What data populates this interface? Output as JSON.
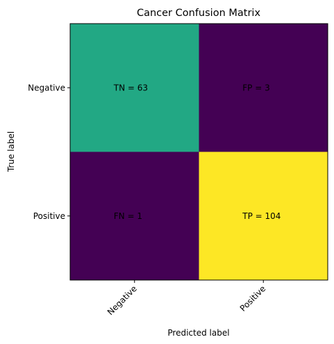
{
  "chart_data": {
    "type": "heatmap",
    "title": "Cancer Confusion Matrix",
    "xlabel": "Predicted label",
    "ylabel": "True label",
    "x_categories": [
      "Negative",
      "Positive"
    ],
    "y_categories": [
      "Negative",
      "Positive"
    ],
    "values": [
      [
        63,
        3
      ],
      [
        1,
        104
      ]
    ],
    "cell_labels": [
      [
        "TN = 63",
        "FP = 3"
      ],
      [
        "FN = 1",
        "TP = 104"
      ]
    ],
    "colormap": "viridis",
    "colors": [
      [
        "#22a884",
        "#440154"
      ],
      [
        "#440154",
        "#fde725"
      ]
    ],
    "grid": false,
    "legend": "none"
  }
}
